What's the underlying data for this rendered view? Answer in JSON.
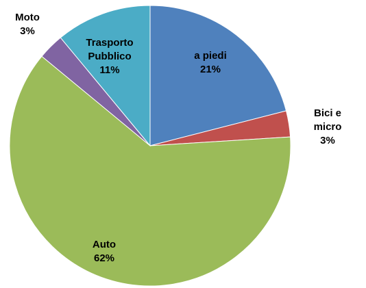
{
  "chart_data": {
    "type": "pie",
    "categories": [
      "a piedi",
      "Bici e micro",
      "Auto",
      "Moto",
      "Trasporto Pubblico"
    ],
    "values": [
      21,
      3,
      62,
      3,
      11
    ],
    "value_labels": [
      "21%",
      "3%",
      "62%",
      "3%",
      "11%"
    ],
    "colors": [
      "#4f81bd",
      "#c0504d",
      "#9bbb59",
      "#8064a2",
      "#4bacc6"
    ]
  }
}
